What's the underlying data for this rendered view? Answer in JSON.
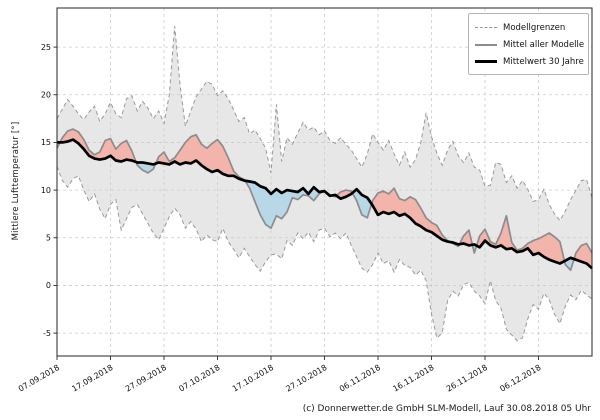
{
  "chart_data": {
    "type": "line",
    "title": "",
    "ylabel": "Mittlere Lufttemperatur [°]",
    "xlabel": "",
    "grid": true,
    "legend_position": "top-right",
    "ylim": [
      -7.4,
      29.1
    ],
    "xlim": [
      0,
      100
    ],
    "y_ticks": [
      -5,
      0,
      5,
      10,
      15,
      20,
      25
    ],
    "x_ticks": {
      "days": [
        0,
        10,
        20,
        30,
        40,
        50,
        60,
        70,
        80,
        90
      ],
      "labels": [
        "07.09.2018",
        "17.09.2018",
        "27.09.2018",
        "07.10.2018",
        "17.10.2018",
        "27.10.2018",
        "06.11.2018",
        "16.11.2018",
        "26.11.2018",
        "06.12.2018"
      ]
    },
    "x_description": "daily values, day 0 = 07.09.2018",
    "fills": {
      "band_color": "#e7e7e7",
      "above_color": "#f2b1a8",
      "below_color": "#b5d7e8"
    },
    "legend": {
      "items": [
        {
          "label": "Modellgrenzen",
          "style": "dashed-gray"
        },
        {
          "label": "Mittel aller Modelle",
          "style": "solid-gray"
        },
        {
          "label": "Mittelwert 30 Jahre",
          "style": "solid-black-thick"
        }
      ]
    },
    "series": [
      {
        "name": "Modellgrenzen (oben)",
        "role": "upper_bound",
        "style": "dashed",
        "color": "#999999",
        "values": [
          17.5,
          18.5,
          19.5,
          18.8,
          18.0,
          17.4,
          18.2,
          18.8,
          17.2,
          18.0,
          19.2,
          18.0,
          17.6,
          19.6,
          19.9,
          18.3,
          19.3,
          18.6,
          17.5,
          18.3,
          17.0,
          20.0,
          27.2,
          21.0,
          16.7,
          18.3,
          19.8,
          20.6,
          21.4,
          21.1,
          19.9,
          20.4,
          19.6,
          18.4,
          17.2,
          17.6,
          15.9,
          16.3,
          15.4,
          14.4,
          11.8,
          19.0,
          13.0,
          15.5,
          14.8,
          16.0,
          17.1,
          16.3,
          16.6,
          15.8,
          16.2,
          15.2,
          14.9,
          15.5,
          14.8,
          14.2,
          13.3,
          12.4,
          13.8,
          15.9,
          15.0,
          14.2,
          15.2,
          13.8,
          12.6,
          14.0,
          12.4,
          13.2,
          15.0,
          18.1,
          15.6,
          13.9,
          12.6,
          14.2,
          15.1,
          13.6,
          12.9,
          13.9,
          12.4,
          12.1,
          10.4,
          10.5,
          12.9,
          12.7,
          10.8,
          11.5,
          10.2,
          11.0,
          10.1,
          8.8,
          9.0,
          10.1,
          8.5,
          7.5,
          6.8,
          7.8,
          9.0,
          10.0,
          11.0,
          11.1,
          9.2
        ]
      },
      {
        "name": "Modellgrenzen (unten)",
        "role": "lower_bound",
        "style": "dashed",
        "color": "#999999",
        "values": [
          12.5,
          11.0,
          10.3,
          11.2,
          11.5,
          10.0,
          8.8,
          9.6,
          8.0,
          7.0,
          8.5,
          9.0,
          5.8,
          7.0,
          8.2,
          8.5,
          7.5,
          6.5,
          5.5,
          4.8,
          6.0,
          7.2,
          8.1,
          7.4,
          6.0,
          6.7,
          5.9,
          4.6,
          5.3,
          4.8,
          4.6,
          6.0,
          4.6,
          3.8,
          2.9,
          3.9,
          3.0,
          2.2,
          1.5,
          2.5,
          3.2,
          3.3,
          2.8,
          4.7,
          4.2,
          5.5,
          4.9,
          5.6,
          4.6,
          5.8,
          6.0,
          5.1,
          5.5,
          4.9,
          5.5,
          4.2,
          3.0,
          1.8,
          1.4,
          2.2,
          3.4,
          2.3,
          2.6,
          1.4,
          2.7,
          2.1,
          1.9,
          1.1,
          1.6,
          0.5,
          -3.0,
          -5.5,
          -5.0,
          -1.6,
          -0.6,
          -1.1,
          0.1,
          0.3,
          -0.6,
          -1.1,
          -1.9,
          0.5,
          -1.6,
          -2.4,
          -4.6,
          -5.2,
          -5.8,
          -5.5,
          -3.5,
          -2.0,
          -2.5,
          -0.8,
          -1.5,
          -3.0,
          -4.0,
          -2.2,
          -1.0,
          -1.5,
          -0.5,
          -1.0,
          -1.4
        ]
      },
      {
        "name": "Mittel aller Modelle",
        "role": "model_mean",
        "style": "solid",
        "color": "#8c8c8c",
        "values": [
          14.4,
          15.5,
          16.2,
          16.4,
          16.1,
          15.3,
          14.2,
          13.7,
          14.0,
          15.2,
          15.4,
          14.3,
          14.9,
          15.2,
          14.1,
          12.6,
          12.1,
          11.8,
          12.2,
          13.5,
          14.0,
          13.0,
          13.4,
          14.2,
          15.0,
          15.6,
          15.8,
          14.8,
          14.4,
          14.9,
          15.3,
          14.6,
          13.4,
          12.0,
          11.4,
          11.1,
          10.2,
          8.8,
          7.4,
          6.4,
          6.0,
          7.3,
          7.0,
          7.7,
          9.2,
          9.0,
          9.5,
          9.4,
          8.9,
          9.6,
          9.9,
          9.5,
          9.3,
          9.8,
          10.0,
          9.9,
          8.9,
          7.4,
          7.1,
          8.9,
          9.7,
          9.9,
          9.6,
          10.2,
          9.1,
          8.9,
          9.3,
          9.0,
          8.1,
          7.1,
          6.6,
          6.3,
          5.3,
          4.7,
          4.4,
          4.1,
          5.2,
          5.8,
          3.4,
          5.2,
          5.9,
          4.6,
          4.3,
          5.5,
          7.3,
          4.5,
          3.7,
          3.9,
          4.4,
          4.7,
          4.9,
          5.2,
          5.5,
          5.1,
          4.6,
          2.2,
          1.6,
          3.4,
          4.2,
          4.4,
          3.4
        ]
      },
      {
        "name": "Mittelwert 30 Jahre",
        "role": "climate_mean",
        "style": "solid-thick",
        "color": "#000000",
        "values": [
          15.0,
          15.0,
          15.1,
          15.3,
          14.9,
          14.3,
          13.6,
          13.3,
          13.2,
          13.3,
          13.6,
          13.1,
          13.0,
          13.2,
          13.1,
          12.9,
          12.9,
          12.8,
          12.7,
          12.9,
          12.8,
          12.7,
          13.0,
          12.7,
          12.9,
          12.8,
          13.1,
          12.6,
          12.2,
          11.9,
          12.1,
          11.7,
          11.5,
          11.5,
          11.2,
          11.0,
          10.9,
          10.8,
          10.4,
          10.2,
          9.6,
          10.1,
          9.7,
          10.0,
          9.9,
          9.8,
          10.2,
          9.6,
          10.3,
          9.8,
          9.9,
          9.4,
          9.5,
          9.1,
          9.3,
          9.6,
          10.1,
          9.5,
          9.2,
          8.4,
          7.4,
          7.7,
          7.5,
          7.7,
          7.3,
          7.5,
          7.1,
          6.5,
          6.2,
          5.8,
          5.6,
          5.2,
          4.8,
          4.6,
          4.5,
          4.3,
          4.4,
          4.2,
          4.3,
          4.0,
          4.7,
          4.2,
          4.0,
          4.2,
          3.8,
          3.9,
          3.5,
          3.6,
          3.9,
          3.2,
          3.4,
          3.0,
          2.7,
          2.5,
          2.3,
          2.6,
          2.9,
          2.7,
          2.5,
          2.3,
          1.8
        ]
      }
    ]
  },
  "footer": {
    "credit": "(c) Donnerwetter.de GmbH SLM-Modell, Lauf 30.08.2018 05 Uhr"
  },
  "colors": {
    "grid": "#cccccc",
    "axis": "#262626",
    "tick_text": "#111111"
  }
}
